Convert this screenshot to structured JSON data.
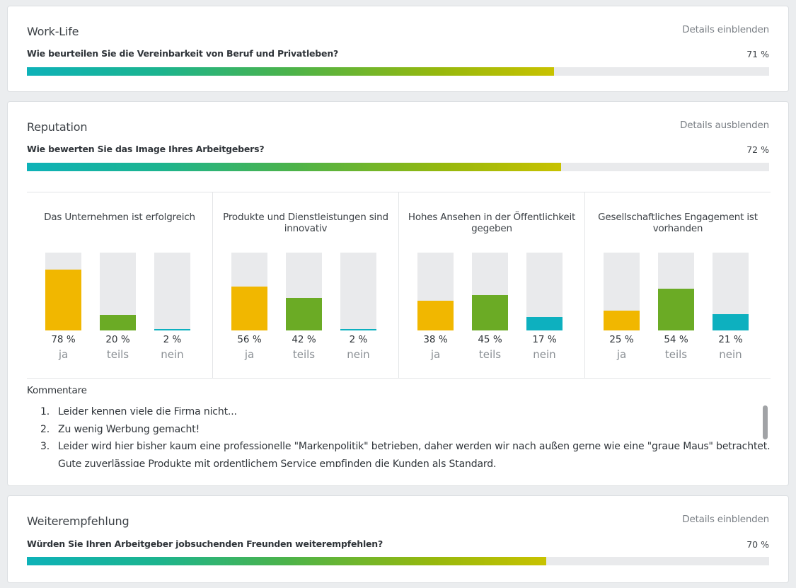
{
  "colors": {
    "ja": "#f1b700",
    "teils": "#6bab25",
    "nein": "#0db0bf",
    "track": "#e9eaec"
  },
  "worklife": {
    "title": "Work-Life",
    "details": "Details einblenden",
    "question": "Wie beurteilen Sie die Vereinbarkeit von Beruf und Privatleben?",
    "percent_text": "71 %",
    "progress": 71
  },
  "reputation": {
    "title": "Reputation",
    "details": "Details ausblenden",
    "question": "Wie bewerten Sie das Image Ihres Arbeitgebers?",
    "percent_text": "72 %",
    "progress": 72,
    "comments_heading": "Kommentare",
    "comments": [
      {
        "num": "1.",
        "text": "Leider kennen viele die Firma nicht..."
      },
      {
        "num": "2.",
        "text": "Zu wenig Werbung gemacht!"
      },
      {
        "num": "3.",
        "text": "Leider wird hier bisher kaum eine professionelle \"Markenpolitik\" betrieben, daher werden wir nach außen gerne wie eine \"graue Maus\" betrachtet."
      },
      {
        "num": "",
        "text": "Gute zuverlässige Produkte mit ordentlichem Service empfinden die Kunden als Standard."
      }
    ]
  },
  "weiter": {
    "title": "Weiterempfehlung",
    "details": "Details einblenden",
    "question": "Würden Sie Ihren Arbeitgeber jobsuchenden Freunden weiterempfehlen?",
    "percent_text": "70 %",
    "progress": 70
  },
  "chart_data": [
    {
      "type": "bar",
      "title": "Das Unternehmen ist erfolgreich",
      "categories": [
        "ja",
        "teils",
        "nein"
      ],
      "values": [
        78,
        20,
        2
      ],
      "value_labels": [
        "78 %",
        "20 %",
        "2 %"
      ],
      "ylim": [
        0,
        100
      ]
    },
    {
      "type": "bar",
      "title": "Produkte und Dienstleistungen sind innovativ",
      "categories": [
        "ja",
        "teils",
        "nein"
      ],
      "values": [
        56,
        42,
        2
      ],
      "value_labels": [
        "56 %",
        "42 %",
        "2 %"
      ],
      "ylim": [
        0,
        100
      ]
    },
    {
      "type": "bar",
      "title": "Hohes Ansehen in der Öffentlichkeit gegeben",
      "categories": [
        "ja",
        "teils",
        "nein"
      ],
      "values": [
        38,
        45,
        17
      ],
      "value_labels": [
        "38 %",
        "45 %",
        "17 %"
      ],
      "ylim": [
        0,
        100
      ]
    },
    {
      "type": "bar",
      "title": "Gesellschaftliches Engagement ist vorhanden",
      "categories": [
        "ja",
        "teils",
        "nein"
      ],
      "values": [
        25,
        54,
        21
      ],
      "value_labels": [
        "25 %",
        "54 %",
        "21 %"
      ],
      "ylim": [
        0,
        100
      ]
    }
  ]
}
